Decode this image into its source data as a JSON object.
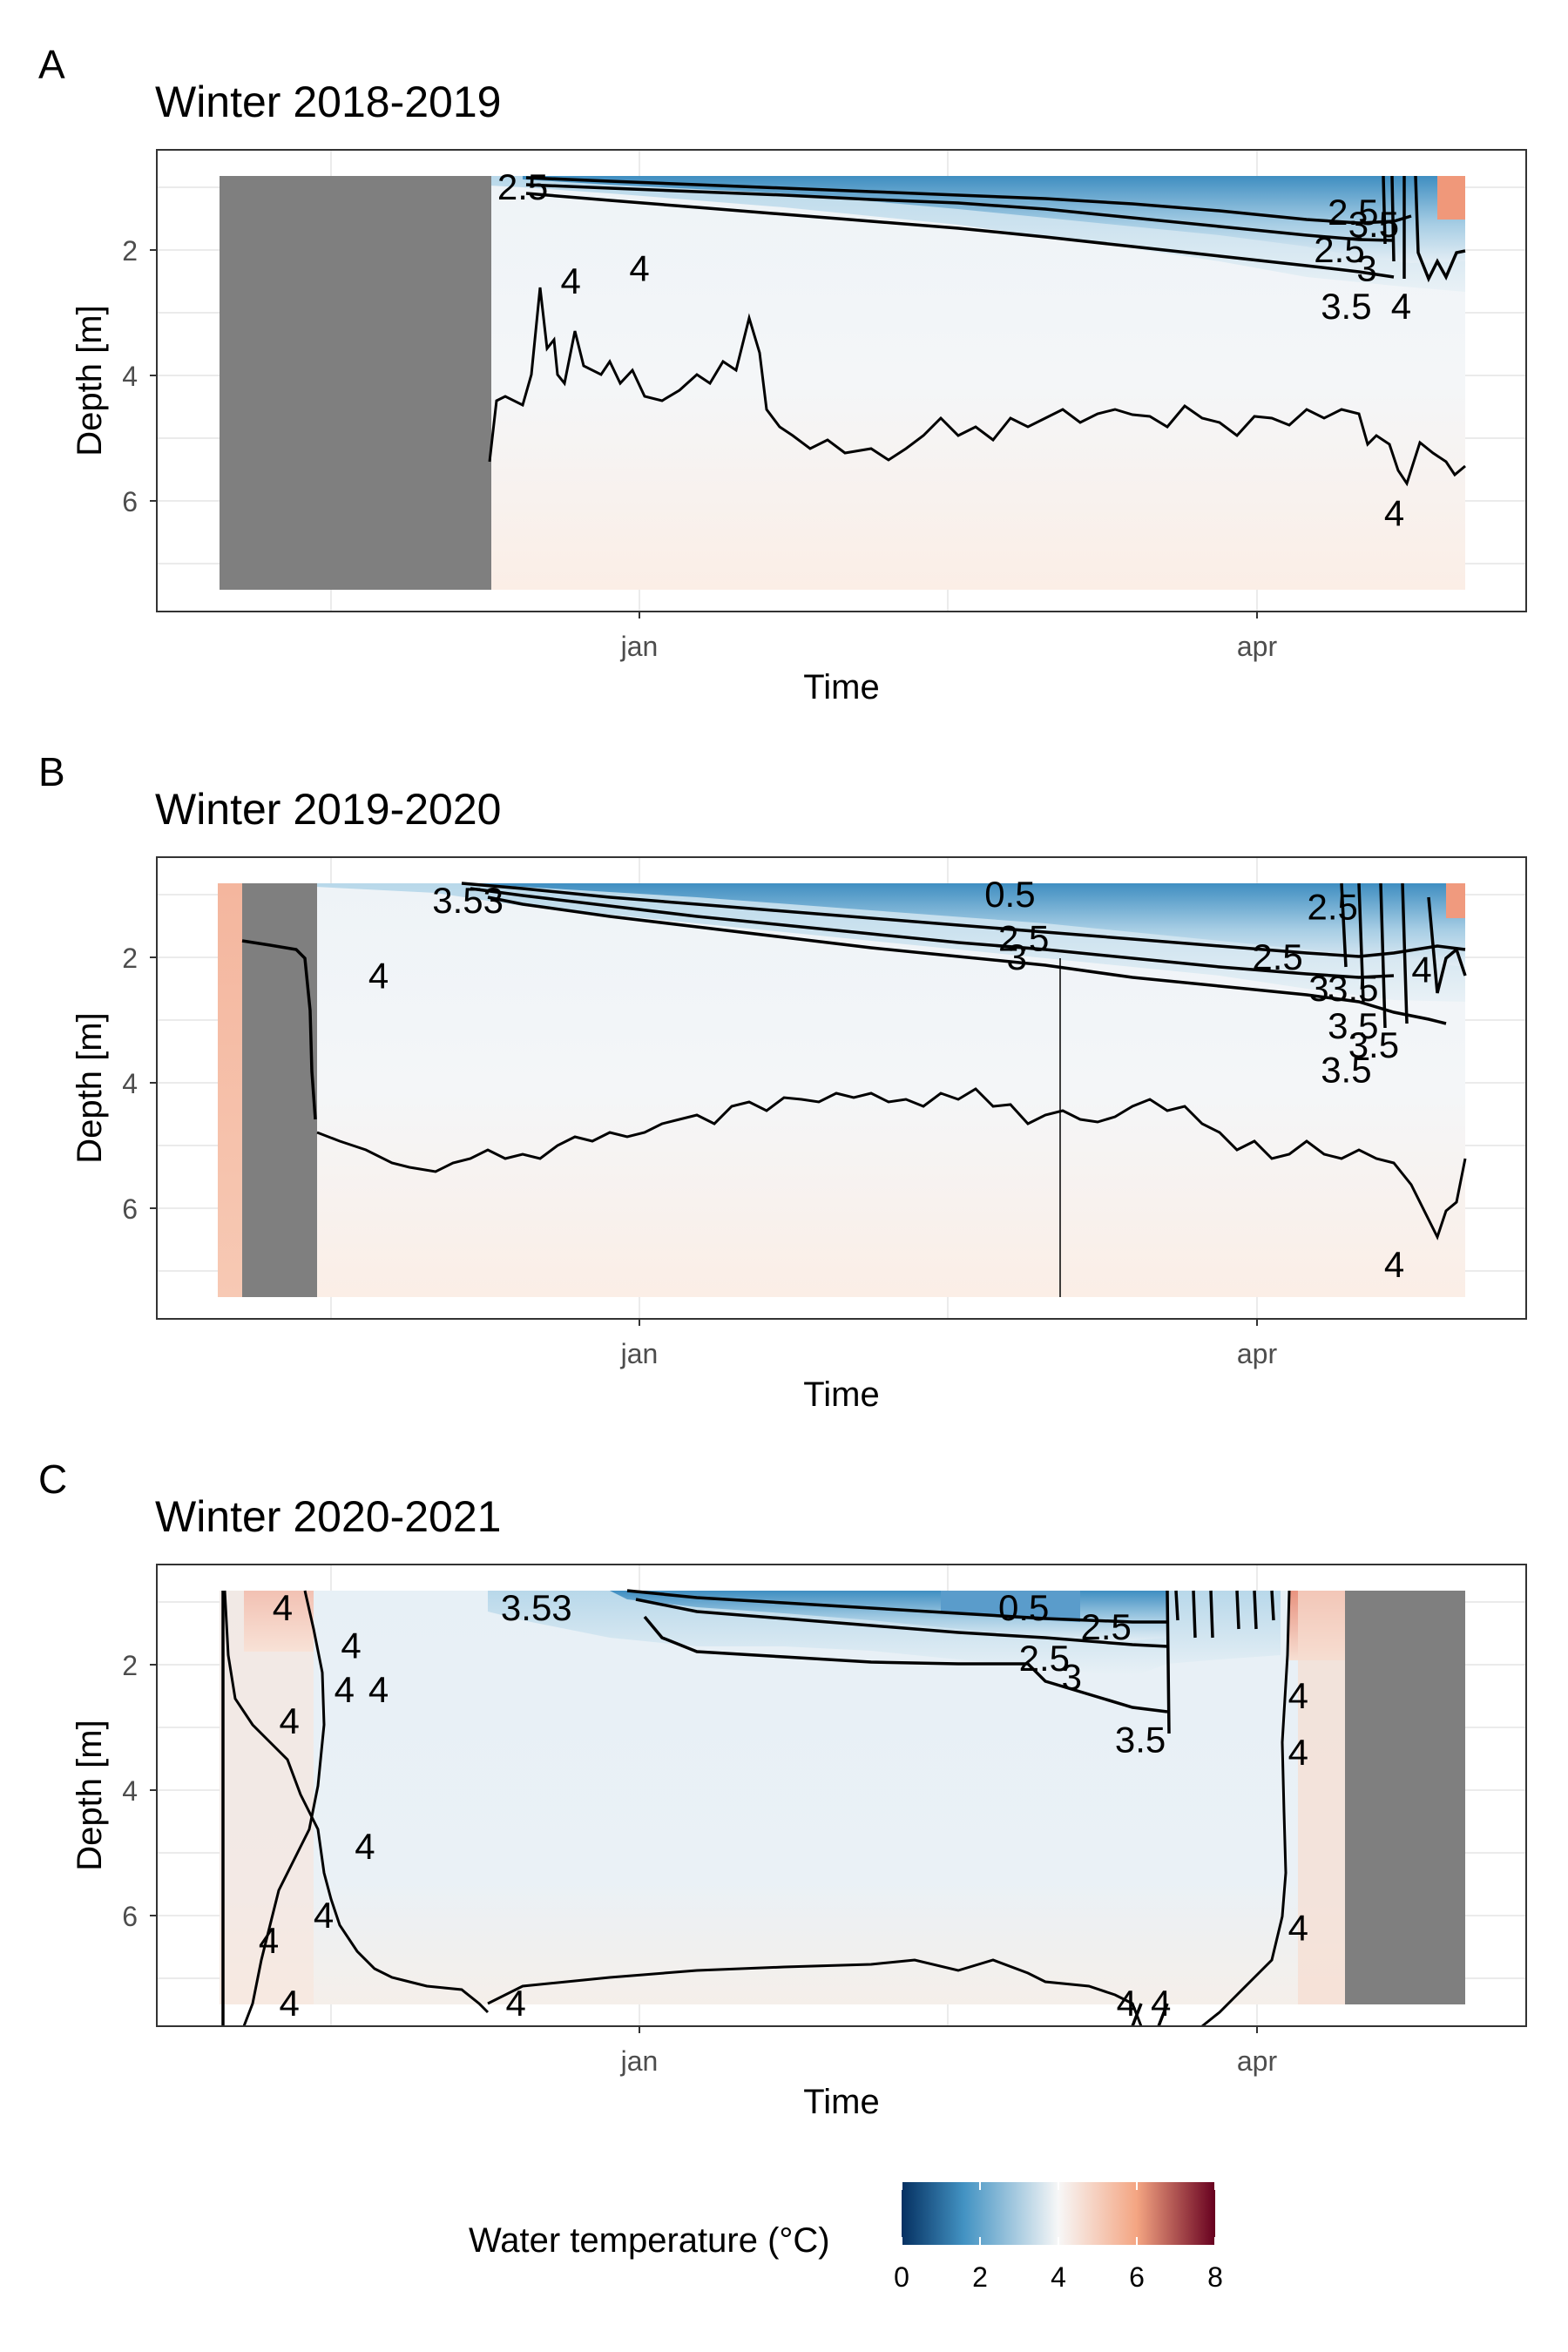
{
  "colors": {
    "cold": "#053061",
    "cool": "#4393c3",
    "neutral": "#f7f7f7",
    "warm": "#f4a582",
    "hot": "#67001f",
    "no_data": "#7f7f7f",
    "grid": "#ebebeb",
    "contour": "#000000"
  },
  "legend": {
    "title": "Water temperature (°C)",
    "ticks": [
      "0",
      "2",
      "4",
      "6",
      "8"
    ],
    "range": [
      0,
      8
    ]
  },
  "chart_data": [
    {
      "type": "heatmap",
      "panel_letter": "A",
      "title": "Winter 2018-2019",
      "xlabel": "Time",
      "ylabel": "Depth [m]",
      "x_ticks": [
        "jan",
        "apr"
      ],
      "y_ticks": [
        "2",
        "4",
        "6"
      ],
      "ylim": [
        0.8,
        7.4
      ],
      "y_reversed": true,
      "contour_labels": [
        {
          "text": "2.5",
          "x": "Dec 15",
          "y": 1.0
        },
        {
          "text": "4",
          "x": "Dec 22",
          "y": 2.5
        },
        {
          "text": "4",
          "x": "Jan 1",
          "y": 2.3
        },
        {
          "text": "2.5",
          "x": "Apr 15",
          "y": 1.4
        },
        {
          "text": "3.5",
          "x": "Apr 18",
          "y": 1.6
        },
        {
          "text": "2.5",
          "x": "Apr 13",
          "y": 2.0
        },
        {
          "text": "3",
          "x": "Apr 17",
          "y": 2.3
        },
        {
          "text": "3.5",
          "x": "Apr 14",
          "y": 2.9
        },
        {
          "text": "4",
          "x": "Apr 22",
          "y": 2.9
        },
        {
          "text": "4",
          "x": "Apr 21",
          "y": 6.2
        }
      ]
    },
    {
      "type": "heatmap",
      "panel_letter": "B",
      "title": "Winter 2019-2020",
      "xlabel": "Time",
      "ylabel": "Depth [m]",
      "x_ticks": [
        "jan",
        "apr"
      ],
      "y_ticks": [
        "2",
        "4",
        "6"
      ],
      "ylim": [
        0.8,
        7.4
      ],
      "y_reversed": true,
      "contour_labels": [
        {
          "text": "3.53",
          "x": "Dec 7",
          "y": 1.1
        },
        {
          "text": "4",
          "x": "Nov 24",
          "y": 2.3
        },
        {
          "text": "0.5",
          "x": "Feb 24",
          "y": 1.0
        },
        {
          "text": "2.5",
          "x": "Feb 26",
          "y": 1.7
        },
        {
          "text": "3",
          "x": "Feb 25",
          "y": 2.0
        },
        {
          "text": "2.5",
          "x": "Apr 12",
          "y": 1.2
        },
        {
          "text": "2.5",
          "x": "Apr 4",
          "y": 2.0
        },
        {
          "text": "3",
          "x": "Apr 10",
          "y": 2.5
        },
        {
          "text": "3.5",
          "x": "Apr 15",
          "y": 2.5
        },
        {
          "text": "3.5",
          "x": "Apr 15",
          "y": 3.1
        },
        {
          "text": "3.5",
          "x": "Apr 18",
          "y": 3.4
        },
        {
          "text": "3.5",
          "x": "Apr 14",
          "y": 3.8
        },
        {
          "text": "4",
          "x": "Apr 25",
          "y": 2.2
        },
        {
          "text": "4",
          "x": "Apr 21",
          "y": 6.9
        }
      ]
    },
    {
      "type": "heatmap",
      "panel_letter": "C",
      "title": "Winter 2020-2021",
      "xlabel": "Time",
      "ylabel": "Depth [m]",
      "x_ticks": [
        "jan",
        "apr"
      ],
      "y_ticks": [
        "2",
        "4",
        "6"
      ],
      "ylim": [
        0.8,
        7.4
      ],
      "y_reversed": true,
      "contour_labels": [
        {
          "text": "4",
          "x": "Nov 10",
          "y": 1.1
        },
        {
          "text": "4",
          "x": "Nov 20",
          "y": 1.7
        },
        {
          "text": "4",
          "x": "Nov 19",
          "y": 2.4
        },
        {
          "text": "4",
          "x": "Nov 24",
          "y": 2.4
        },
        {
          "text": "4",
          "x": "Nov 11",
          "y": 2.9
        },
        {
          "text": "4",
          "x": "Nov 22",
          "y": 4.9
        },
        {
          "text": "4",
          "x": "Nov 16",
          "y": 6.0
        },
        {
          "text": "4",
          "x": "Nov 8",
          "y": 6.4
        },
        {
          "text": "4",
          "x": "Nov 11",
          "y": 7.4
        },
        {
          "text": "4",
          "x": "Dec 14",
          "y": 7.4
        },
        {
          "text": "3.53",
          "x": "Dec 17",
          "y": 1.1
        },
        {
          "text": "0.5",
          "x": "Feb 26",
          "y": 1.1
        },
        {
          "text": "2.5",
          "x": "Mar 1",
          "y": 1.9
        },
        {
          "text": "3",
          "x": "Mar 5",
          "y": 2.2
        },
        {
          "text": "2.5",
          "x": "Mar 10",
          "y": 1.4
        },
        {
          "text": "3.5",
          "x": "Mar 15",
          "y": 3.2
        },
        {
          "text": "4",
          "x": "Mar 13",
          "y": 7.4
        },
        {
          "text": "4",
          "x": "Mar 18",
          "y": 7.4
        },
        {
          "text": "4",
          "x": "Apr 7",
          "y": 2.5
        },
        {
          "text": "4",
          "x": "Apr 7",
          "y": 3.4
        },
        {
          "text": "4",
          "x": "Apr 7",
          "y": 6.2
        }
      ]
    }
  ]
}
